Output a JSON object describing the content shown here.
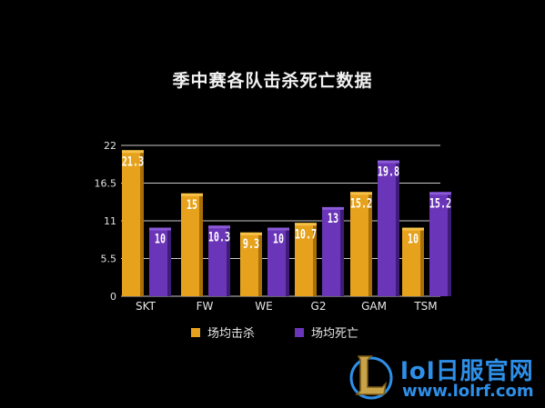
{
  "chart_data": {
    "type": "bar",
    "title": "季中赛各队击杀死亡数据",
    "categories": [
      "SKT",
      "FW",
      "WE",
      "G2",
      "GAM",
      "TSM"
    ],
    "series": [
      {
        "name": "场均击杀",
        "values": [
          21.3,
          15,
          9.3,
          10.7,
          15.2,
          10
        ],
        "color": "#e6a21c"
      },
      {
        "name": "场均死亡",
        "values": [
          10,
          10.3,
          10,
          13,
          19.8,
          15.2
        ],
        "color": "#6a35b8"
      }
    ],
    "yticks": [
      "0",
      "5.5",
      "11",
      "16.5",
      "22"
    ],
    "ylim": [
      0,
      22
    ],
    "grid": true,
    "legend_position": "bottom"
  },
  "watermark": {
    "line1": "lol日服官网",
    "line2": "www.lolrf.com"
  }
}
